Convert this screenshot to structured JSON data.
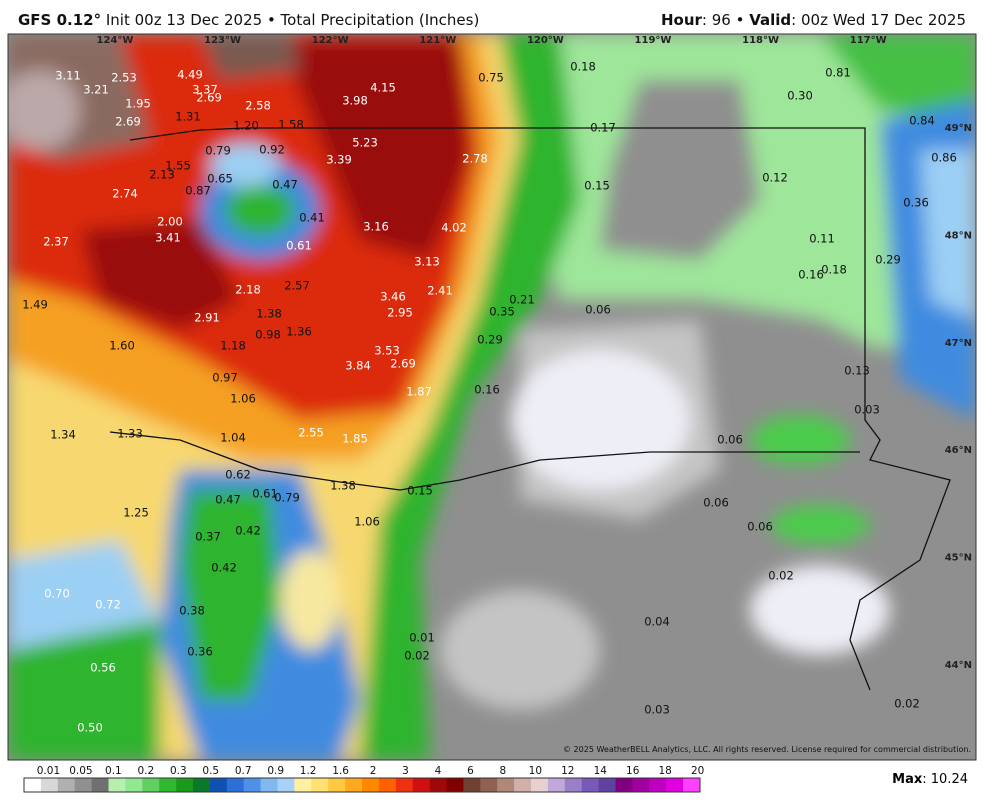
{
  "header": {
    "model": "GFS 0.12°",
    "init": "Init 00z 13 Dec 2025 • Total Precipitation (Inches)",
    "hour_label": "Hour",
    "hour_value": ": 96 • ",
    "valid_label": "Valid",
    "valid_value": ": 00z Wed 17 Dec 2025"
  },
  "map": {
    "longitudes": [
      "124°W",
      "123°W",
      "122°W",
      "121°W",
      "120°W",
      "119°W",
      "118°W",
      "117°W"
    ],
    "latitudes": [
      "49°N",
      "48°N",
      "47°N",
      "46°N",
      "45°N",
      "44°N"
    ],
    "values": [
      "3.11",
      "3.21",
      "2.53",
      "4.49",
      "3.37",
      "2.69",
      "1.95",
      "2.58",
      "3.98",
      "4.15",
      "2.69",
      "1.31",
      "1.20",
      "1.58",
      "5.23",
      "0.79",
      "0.92",
      "3.39",
      "2.78",
      "1.55",
      "2.13",
      "0.65",
      "0.47",
      "0.87",
      "2.74",
      "0.41",
      "3.16",
      "4.02",
      "2.00",
      "3.41",
      "2.37",
      "0.61",
      "3.13",
      "2.18",
      "2.57",
      "2.41",
      "3.46",
      "1.49",
      "2.91",
      "1.38",
      "2.95",
      "1.36",
      "0.98",
      "1.60",
      "1.18",
      "3.53",
      "3.84",
      "2.69",
      "0.97",
      "1.87",
      "1.06",
      "1.34",
      "1.33",
      "1.04",
      "2.55",
      "1.85",
      "0.62",
      "0.47",
      "0.61",
      "0.79",
      "1.38",
      "1.25",
      "1.06",
      "0.37",
      "0.42",
      "0.42",
      "0.70",
      "0.72",
      "0.38",
      "0.36",
      "0.56",
      "0.50",
      "0.75",
      "0.18",
      "0.17",
      "0.15",
      "0.81",
      "0.30",
      "0.84",
      "0.86",
      "0.12",
      "0.36",
      "0.11",
      "0.16",
      "0.18",
      "0.29",
      "0.21",
      "0.35",
      "0.06",
      "0.29",
      "0.16",
      "0.13",
      "0.03",
      "0.06",
      "0.15",
      "0.06",
      "0.06",
      "0.02",
      "0.04",
      "0.01",
      "0.02",
      "0.03",
      "0.02"
    ],
    "copyright": "© 2025 WeatherBELL Analytics, LLC. All rights reserved. License required for commercial distribution."
  },
  "legend": {
    "labels": [
      "0.01",
      "0.05",
      "0.1",
      "0.2",
      "0.3",
      "0.5",
      "0.7",
      "0.9",
      "1.2",
      "1.6",
      "2",
      "3",
      "4",
      "6",
      "8",
      "10",
      "12",
      "14",
      "16",
      "18",
      "20"
    ]
  },
  "footer": {
    "max_label": "Max",
    "max_value": ": 10.24"
  }
}
